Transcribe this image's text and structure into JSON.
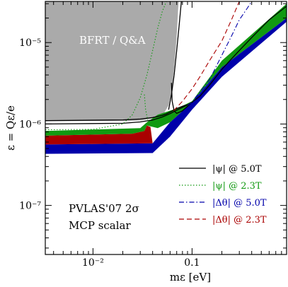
{
  "chart_data": {
    "type": "area",
    "title": "",
    "xlabel": "mε [eV]",
    "ylabel": "ε = Qε/e",
    "x_scale": "log",
    "y_scale": "log",
    "xlim": [
      0.0033,
      0.9
    ],
    "ylim": [
      2.5e-08,
      3.2e-05
    ],
    "x_ticks": [
      {
        "value": 0.01,
        "label": "10⁻²"
      },
      {
        "value": 0.1,
        "label": "0.1"
      }
    ],
    "y_ticks": [
      {
        "value": 1e-07,
        "label": "10⁻⁷"
      },
      {
        "value": 1e-06,
        "label": "10⁻⁶"
      },
      {
        "value": 1e-05,
        "label": "10⁻⁵"
      }
    ],
    "annotations": {
      "region_label": "BFRT / Q&A",
      "pvlas_label": "PVLAS'07 2σ",
      "mcp_label": "MCP scalar"
    },
    "colors": {
      "bfrt_region": "#aaaaaa",
      "psi_5T": "#000000",
      "psi_23T": "#119911",
      "dtheta_5T": "#0000aa",
      "dtheta_23T": "#aa0000",
      "bands": "#ffffff"
    },
    "regions": [
      {
        "name": "BFRT / Q&A",
        "color": "#aaaaaa",
        "boundary": [
          [
            0.0033,
            1.08e-06
          ],
          [
            0.03,
            1.1e-06
          ],
          [
            0.045,
            1.2e-06
          ],
          [
            0.052,
            1.35e-06
          ],
          [
            0.058,
            1.7e-06
          ],
          [
            0.063,
            2.7e-06
          ],
          [
            0.067,
            6e-06
          ],
          [
            0.07,
            1.2e-05
          ],
          [
            0.073,
            3.2e-05
          ]
        ]
      },
      {
        "name": "blue band",
        "color": "#0000aa",
        "upper": [
          [
            0.0033,
            5.6e-07
          ],
          [
            0.04,
            5.8e-07
          ],
          [
            0.06,
            1.05e-06
          ],
          [
            0.1,
            1.85e-06
          ],
          [
            0.2,
            5e-06
          ],
          [
            0.9,
            2e-05
          ]
        ],
        "lower": [
          [
            0.0033,
            4.3e-07
          ],
          [
            0.04,
            4.4e-07
          ],
          [
            0.06,
            7e-07
          ],
          [
            0.1,
            1.5e-06
          ],
          [
            0.2,
            3.8e-06
          ],
          [
            0.9,
            1.8e-05
          ]
        ]
      },
      {
        "name": "red band",
        "color": "#aa0000",
        "upper": [
          [
            0.0033,
            7.2e-07
          ],
          [
            0.025,
            7.6e-07
          ],
          [
            0.033,
            8.2e-07
          ],
          [
            0.035,
            9.6e-07
          ],
          [
            0.038,
            9.2e-07
          ]
        ],
        "lower": [
          [
            0.0033,
            5.6e-07
          ],
          [
            0.04,
            5.8e-07
          ]
        ]
      },
      {
        "name": "green band",
        "color": "#119911",
        "upper": [
          [
            0.0033,
            8.2e-07
          ],
          [
            0.03,
            8.9e-07
          ],
          [
            0.035,
            1.05e-06
          ],
          [
            0.045,
            1.3e-06
          ],
          [
            0.07,
            1.55e-06
          ],
          [
            0.1,
            1.9e-06
          ],
          [
            0.2,
            6e-06
          ],
          [
            0.9,
            3e-05
          ]
        ],
        "lower": [
          [
            0.0033,
            7.2e-07
          ],
          [
            0.025,
            7.6e-07
          ],
          [
            0.033,
            8.2e-07
          ],
          [
            0.035,
            9.6e-07
          ],
          [
            0.045,
            8.9e-07
          ],
          [
            0.06,
            1.05e-06
          ],
          [
            0.1,
            1.85e-06
          ],
          [
            0.2,
            5e-06
          ],
          [
            0.9,
            2e-05
          ]
        ]
      }
    ],
    "series": [
      {
        "name": "|ψ| @ 5.0T",
        "color": "#000000",
        "style": "solid",
        "x": [
          0.0033,
          0.02,
          0.03,
          0.04,
          0.05,
          0.055,
          0.06,
          0.065,
          0.07,
          0.08,
          0.09,
          0.1,
          0.12,
          0.15,
          0.2,
          0.25,
          0.3,
          0.4,
          0.6,
          0.9
        ],
        "y": [
          1.1e-06,
          1.12e-06,
          1.15e-06,
          1.2e-06,
          1.28e-06,
          1.33e-06,
          1.4e-06,
          1.48e-06,
          1.55e-06,
          1.65e-06,
          1.72e-06,
          1.85e-06,
          2.2e-06,
          3e-06,
          4.7e-06,
          6.3e-06,
          8e-06,
          1.15e-05,
          1.9e-05,
          2.8e-05
        ]
      },
      {
        "name": "|ψ| @ 5.0T (second branch)",
        "color": "#000000",
        "style": "solid",
        "x": [
          0.0033,
          0.02,
          0.03,
          0.04,
          0.05,
          0.06,
          0.07,
          0.08,
          0.09,
          0.1
        ],
        "y": [
          1e-06,
          1.02e-06,
          1.06e-06,
          1.12e-06,
          1.22e-06,
          1.34e-06,
          1.48e-06,
          1.6e-06,
          1.72e-06,
          1.85e-06
        ]
      },
      {
        "name": "|ψ| @ 5.0T (upper branch)",
        "color": "#000000",
        "style": "solid",
        "x": [
          0.058,
          0.062,
          0.066,
          0.07,
          0.074,
          0.078
        ],
        "y": [
          1.5e-06,
          2.3e-06,
          4e-06,
          8e-06,
          1.6e-05,
          3.2e-05
        ]
      },
      {
        "name": "|ψ| @ 5.0T (returning branch)",
        "color": "#000000",
        "style": "solid",
        "x": [
          0.062,
          0.063,
          0.066,
          0.07,
          0.08,
          0.09,
          0.1
        ],
        "y": [
          3.2e-06,
          1.9e-06,
          1.45e-06,
          1.35e-06,
          1.45e-06,
          1.65e-06,
          1.85e-06
        ]
      },
      {
        "name": "|ψ| @ 2.3T",
        "color": "#119911",
        "style": "dotted",
        "x": [
          0.0033,
          0.01,
          0.02,
          0.025,
          0.03,
          0.035,
          0.04,
          0.045,
          0.05,
          0.055
        ],
        "y": [
          8.5e-07,
          8.6e-07,
          1e-06,
          1.3e-06,
          2.1e-06,
          4e-06,
          8e-06,
          1.5e-05,
          2.4e-05,
          3.2e-05
        ]
      },
      {
        "name": "|ψ| @ 2.3T (lower branch)",
        "color": "#119911",
        "style": "dotted",
        "x": [
          0.033,
          0.034,
          0.036,
          0.038
        ],
        "y": [
          2.3e-06,
          1.5e-06,
          1.05e-06,
          9.2e-07
        ]
      },
      {
        "name": "|Δθ| @ 5.0T",
        "color": "#0000aa",
        "style": "dashdot",
        "x": [
          0.09,
          0.1,
          0.15,
          0.2,
          0.25,
          0.3,
          0.35,
          0.4
        ],
        "y": [
          1.7e-06,
          1.85e-06,
          3.5e-06,
          7e-06,
          1.2e-05,
          1.9e-05,
          2.5e-05,
          3.2e-05
        ]
      },
      {
        "name": "|Δθ| @ 2.3T",
        "color": "#aa0000",
        "style": "dashed",
        "x": [
          0.065,
          0.08,
          0.1,
          0.12,
          0.15,
          0.2,
          0.25,
          0.3
        ],
        "y": [
          1.45e-06,
          1.9e-06,
          2.7e-06,
          3.8e-06,
          6e-06,
          1.05e-05,
          1.9e-05,
          3.2e-05
        ]
      }
    ],
    "legend": {
      "position": "lower-right",
      "entries": [
        {
          "label": "|ψ| @ 5.0T",
          "color": "#000000",
          "style": "solid"
        },
        {
          "label": "|ψ| @ 2.3T",
          "color": "#119911",
          "style": "dotted"
        },
        {
          "label": "|Δθ| @ 5.0T",
          "color": "#0000aa",
          "style": "dashdot"
        },
        {
          "label": "|Δθ| @ 2.3T",
          "color": "#aa0000",
          "style": "dashed"
        }
      ]
    }
  }
}
